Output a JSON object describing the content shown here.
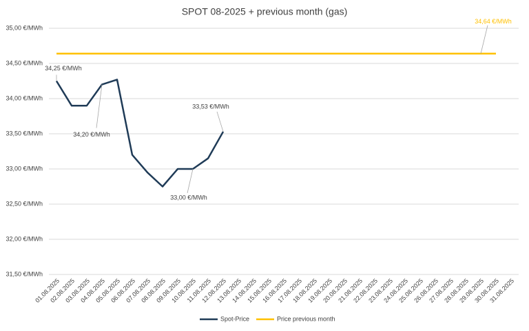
{
  "chart_data": {
    "type": "line",
    "title": "SPOT 08-2025 + previous month (gas)",
    "categories": [
      "01.08.2025",
      "02.08.2025",
      "03.08.2025",
      "04.08.2025",
      "05.08.2025",
      "06.08.2025",
      "07.08.2025",
      "08.08.2025",
      "09.08.2025",
      "10.08.2025",
      "11.08.2025",
      "12.08.2025",
      "13.08.2025",
      "14.08.2025",
      "15.08.2025",
      "16.08.2025",
      "17.08.2025",
      "18.08.2025",
      "19.08.2025",
      "20.08.2025",
      "21.08.2025",
      "22.08.2025",
      "23.08.2025",
      "24.08.2025",
      "25.08.2025",
      "26.08.2025",
      "27.08.2025",
      "28.08.2025",
      "29.08.2025",
      "30.08.2025",
      "31.08.2025"
    ],
    "series": [
      {
        "name": "Spot-Price",
        "color": "#1f3b57",
        "values": [
          34.25,
          33.9,
          33.9,
          34.2,
          34.27,
          33.2,
          32.95,
          32.75,
          33.0,
          33.0,
          33.15,
          33.53,
          null,
          null,
          null,
          null,
          null,
          null,
          null,
          null,
          null,
          null,
          null,
          null,
          null,
          null,
          null,
          null,
          null,
          null,
          null
        ],
        "value_labels": [
          "34,25 €/MWh",
          null,
          null,
          "34,20 €/MWh",
          null,
          null,
          null,
          null,
          null,
          "33,00 €/MWh",
          null,
          "33,53 €/MWh",
          null,
          null,
          null,
          null,
          null,
          null,
          null,
          null,
          null,
          null,
          null,
          null,
          null,
          null,
          null,
          null,
          null,
          null,
          null
        ]
      },
      {
        "name": "Price previous month",
        "color": "#ffc000",
        "values": [
          34.64,
          34.64,
          34.64,
          34.64,
          34.64,
          34.64,
          34.64,
          34.64,
          34.64,
          34.64,
          34.64,
          34.64,
          34.64,
          34.64,
          34.64,
          34.64,
          34.64,
          34.64,
          34.64,
          34.64,
          34.64,
          34.64,
          34.64,
          34.64,
          34.64,
          34.64,
          34.64,
          34.64,
          34.64,
          34.64,
          null
        ],
        "value_labels": [
          null,
          null,
          null,
          null,
          null,
          null,
          null,
          null,
          null,
          null,
          null,
          null,
          null,
          null,
          null,
          null,
          null,
          null,
          null,
          null,
          null,
          null,
          null,
          null,
          null,
          null,
          null,
          null,
          "34,64 €/MWh",
          null,
          null
        ]
      }
    ],
    "ylim": [
      31.5,
      35
    ],
    "yticks": [
      {
        "value": 31.5,
        "label": "31,50 €/MWh"
      },
      {
        "value": 32,
        "label": "32,00 €/MWh"
      },
      {
        "value": 32.5,
        "label": "32,50 €/MWh"
      },
      {
        "value": 33,
        "label": "33,00 €/MWh"
      },
      {
        "value": 33.5,
        "label": "33,50 €/MWh"
      },
      {
        "value": 34,
        "label": "34,00 €/MWh"
      },
      {
        "value": 34.5,
        "label": "34,50 €/MWh"
      },
      {
        "value": 35,
        "label": "35,00 €/MWh"
      }
    ],
    "grid": true,
    "legend": "bottom"
  }
}
